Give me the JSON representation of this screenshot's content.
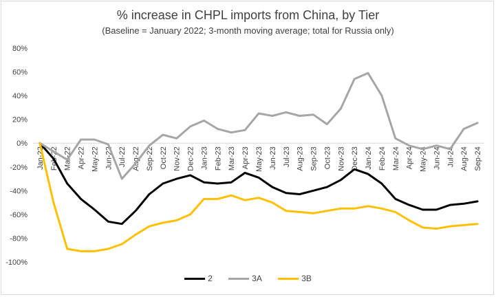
{
  "chart_data": {
    "type": "line",
    "title": "% increase in CHPL imports from China, by Tier",
    "subtitle": "(Baseline = January 2022; 3-month moving average; total for Russia only)",
    "xlabel": "",
    "ylabel": "",
    "ylim": [
      -100,
      80
    ],
    "y_ticks": [
      "80%",
      "60%",
      "40%",
      "20%",
      "0%",
      "-20%",
      "-40%",
      "-60%",
      "-80%",
      "-100%"
    ],
    "y_tick_values": [
      80,
      60,
      40,
      20,
      0,
      -20,
      -40,
      -60,
      -80,
      -100
    ],
    "grid": false,
    "legend_position": "bottom",
    "categories": [
      "Jan-22",
      "Feb-22",
      "Mar-22",
      "Apr-22",
      "May-22",
      "Jun-22",
      "Jul-22",
      "Aug-22",
      "Sep-22",
      "Oct-22",
      "Nov-22",
      "Dec-22",
      "Jan-23",
      "Feb-23",
      "Mar-23",
      "Apr-23",
      "May-23",
      "Jun-23",
      "Jul-23",
      "Aug-23",
      "Sep-23",
      "Oct-23",
      "Nov-23",
      "Dec-23",
      "Jan-24",
      "Feb-24",
      "Mar-24",
      "Apr-24",
      "May-24",
      "Jun-24",
      "Jul-24",
      "Aug-24",
      "Sep-24"
    ],
    "series": [
      {
        "name": "2",
        "color": "#000000",
        "values": [
          0,
          -13,
          -34,
          -47,
          -56,
          -66,
          -68,
          -57,
          -43,
          -34,
          -30,
          -27,
          -33,
          -34,
          -33,
          -25,
          -29,
          -37,
          -42,
          -43,
          -40,
          -37,
          -31,
          -22,
          -26,
          -34,
          -47,
          -52,
          -56,
          -56,
          -52,
          -51,
          -49
        ]
      },
      {
        "name": "3A",
        "color": "#a6a6a6",
        "values": [
          0,
          -7,
          -14,
          3,
          3,
          -1,
          -30,
          -17,
          -2,
          7,
          4,
          14,
          19,
          12,
          9,
          11,
          25,
          23,
          26,
          23,
          24,
          16,
          29,
          54,
          59,
          40,
          4,
          -2,
          -5,
          -2,
          -5,
          12,
          17
        ]
      },
      {
        "name": "3B",
        "color": "#ffc000",
        "values": [
          0,
          -50,
          -89,
          -91,
          -91,
          -89,
          -85,
          -77,
          -70,
          -67,
          -65,
          -60,
          -47,
          -47,
          -44,
          -48,
          -46,
          -50,
          -57,
          -58,
          -59,
          -57,
          -55,
          -55,
          -53,
          -55,
          -58,
          -65,
          -71,
          -72,
          -70,
          -69,
          -68
        ]
      }
    ]
  }
}
